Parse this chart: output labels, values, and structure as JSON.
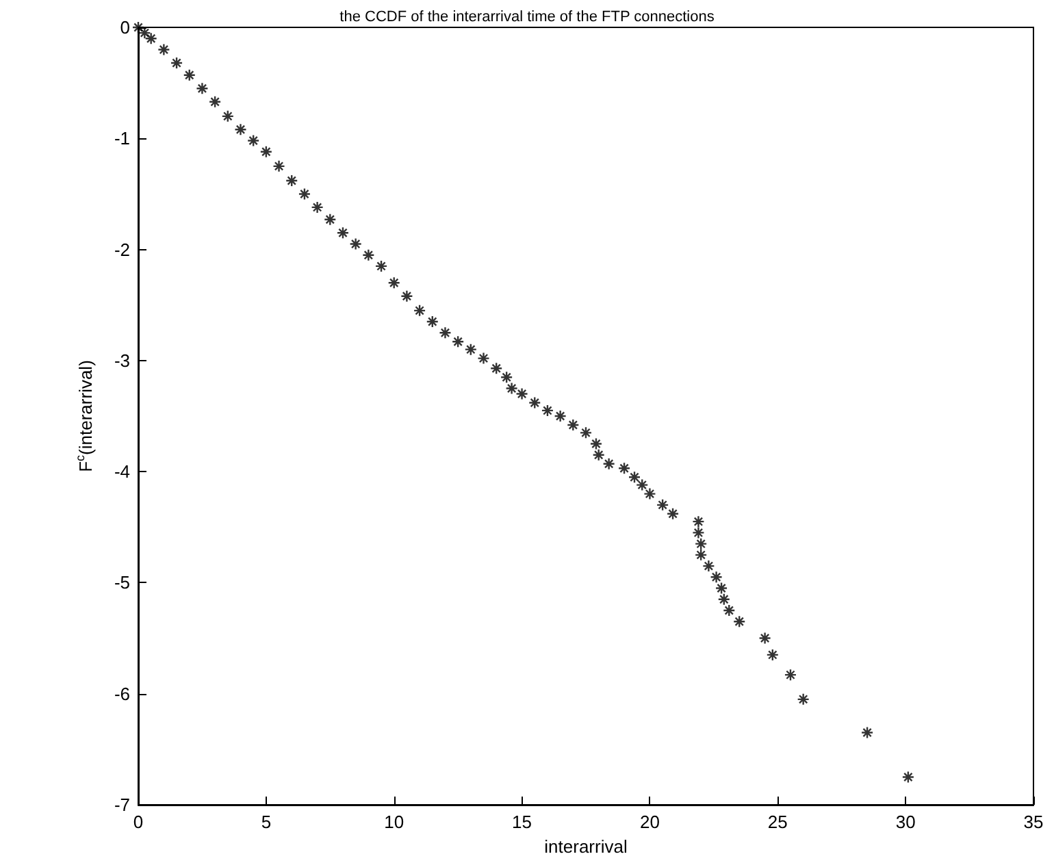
{
  "chart_data": {
    "type": "scatter",
    "title": "the CCDF of the interarrival time of the FTP connections",
    "xlabel": "interarrival",
    "ylabel": "F$^{c}$(interarrival)",
    "x": [
      0,
      0.25,
      0.5,
      1,
      1.5,
      2,
      2.5,
      3,
      3.5,
      4,
      4.5,
      5,
      5.5,
      6,
      6.5,
      7,
      7.5,
      8,
      8.5,
      9,
      9.5,
      10,
      10.5,
      11,
      11.5,
      12,
      12.5,
      13,
      13.5,
      14,
      14.4,
      14.6,
      15,
      15.5,
      16,
      16.5,
      17,
      17.5,
      17.9,
      18,
      18.4,
      19,
      19.4,
      19.7,
      20,
      20.5,
      20.9,
      21.9,
      21.9,
      22,
      22,
      22.3,
      22.6,
      22.8,
      22.9,
      23.1,
      23.5,
      24.5,
      24.8,
      25.5,
      26,
      28.5,
      30.1
    ],
    "series": [
      {
        "color": "#000000",
        "values": [
          0,
          -0.05,
          -0.1,
          -0.2,
          -0.32,
          -0.43,
          -0.55,
          -0.67,
          -0.8,
          -0.92,
          -1.02,
          -1.12,
          -1.25,
          -1.38,
          -1.5,
          -1.62,
          -1.73,
          -1.85,
          -1.95,
          -2.05,
          -2.15,
          -2.3,
          -2.42,
          -2.55,
          -2.65,
          -2.75,
          -2.83,
          -2.9,
          -2.98,
          -3.07,
          -3.15,
          -3.25,
          -3.3,
          -3.38,
          -3.45,
          -3.5,
          -3.58,
          -3.65,
          -3.75,
          -3.85,
          -3.93,
          -3.97,
          -4.05,
          -4.12,
          -4.2,
          -4.3,
          -4.38,
          -4.45,
          -4.55,
          -4.65,
          -4.75,
          -4.85,
          -4.95,
          -5.05,
          -5.15,
          -5.25,
          -5.35,
          -5.5,
          -5.65,
          -5.83,
          -6.05,
          -6.35,
          -6.75
        ]
      }
    ],
    "xlim": [
      0,
      35
    ],
    "xticks": [
      0,
      5,
      10,
      15,
      20,
      25,
      30,
      35
    ],
    "ylim": [
      -7,
      0
    ],
    "yticks": [
      -7,
      -6,
      -5,
      -4,
      -3,
      -2,
      -1,
      0
    ],
    "grid": false,
    "marker": "cross"
  }
}
